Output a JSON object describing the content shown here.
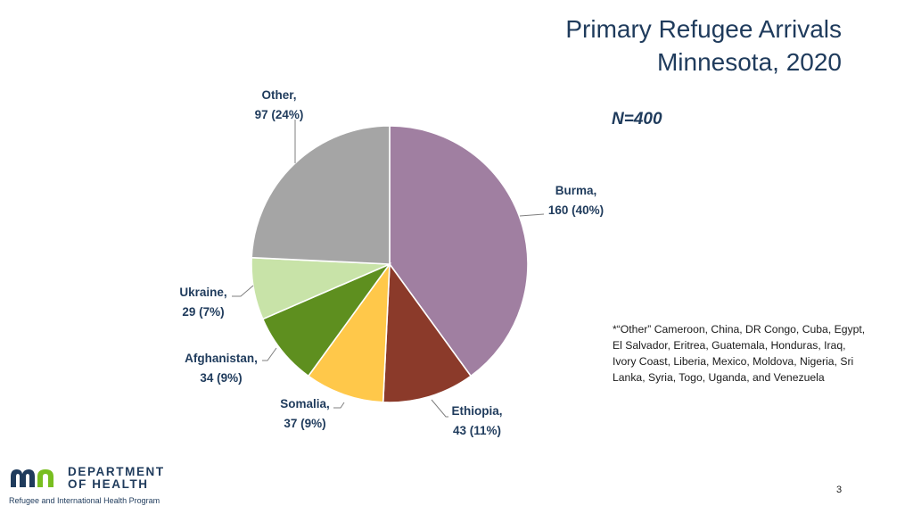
{
  "slide": {
    "title_line1": "Primary Refugee Arrivals",
    "title_line2": "Minnesota, 2020",
    "n_label": "N=400",
    "footnote": "*“Other” Cameroon, China, DR Congo, Cuba, Egypt, El Salvador, Eritrea, Guatemala, Honduras, Iraq, Ivory Coast, Liberia, Mexico, Moldova, Nigeria, Sri Lanka, Syria, Togo, Uganda, and Venezuela",
    "page_number": "3"
  },
  "logo": {
    "line1": "DEPARTMENT",
    "line2": "OF HEALTH",
    "program": "Refugee and International Health Program",
    "mark_blue": "#1f3b5c",
    "mark_green": "#78be20"
  },
  "chart_data": {
    "type": "pie",
    "title": "Primary Refugee Arrivals Minnesota, 2020",
    "total": 400,
    "start": "12 o'clock, clockwise",
    "slices": [
      {
        "label": "Burma,",
        "value": 160,
        "percent": "40%",
        "label_line2": "160 (40%)",
        "color": "#a07fa1"
      },
      {
        "label": "Ethiopia,",
        "value": 43,
        "percent": "11%",
        "label_line2": "43 (11%)",
        "color": "#8b3a2a"
      },
      {
        "label": "Somalia,",
        "value": 37,
        "percent": "9%",
        "label_line2": "37 (9%)",
        "color": "#ffc84a"
      },
      {
        "label": "Afghanistan,",
        "value": 34,
        "percent": "9%",
        "label_line2": "34 (9%)",
        "color": "#5e8f1f"
      },
      {
        "label": "Ukraine,",
        "value": 29,
        "percent": "7%",
        "label_line2": "29 (7%)",
        "color": "#c8e3a8"
      },
      {
        "label": "Other,",
        "value": 97,
        "percent": "24%",
        "label_line2": "97 (24%)",
        "color": "#a5a5a5"
      }
    ]
  }
}
